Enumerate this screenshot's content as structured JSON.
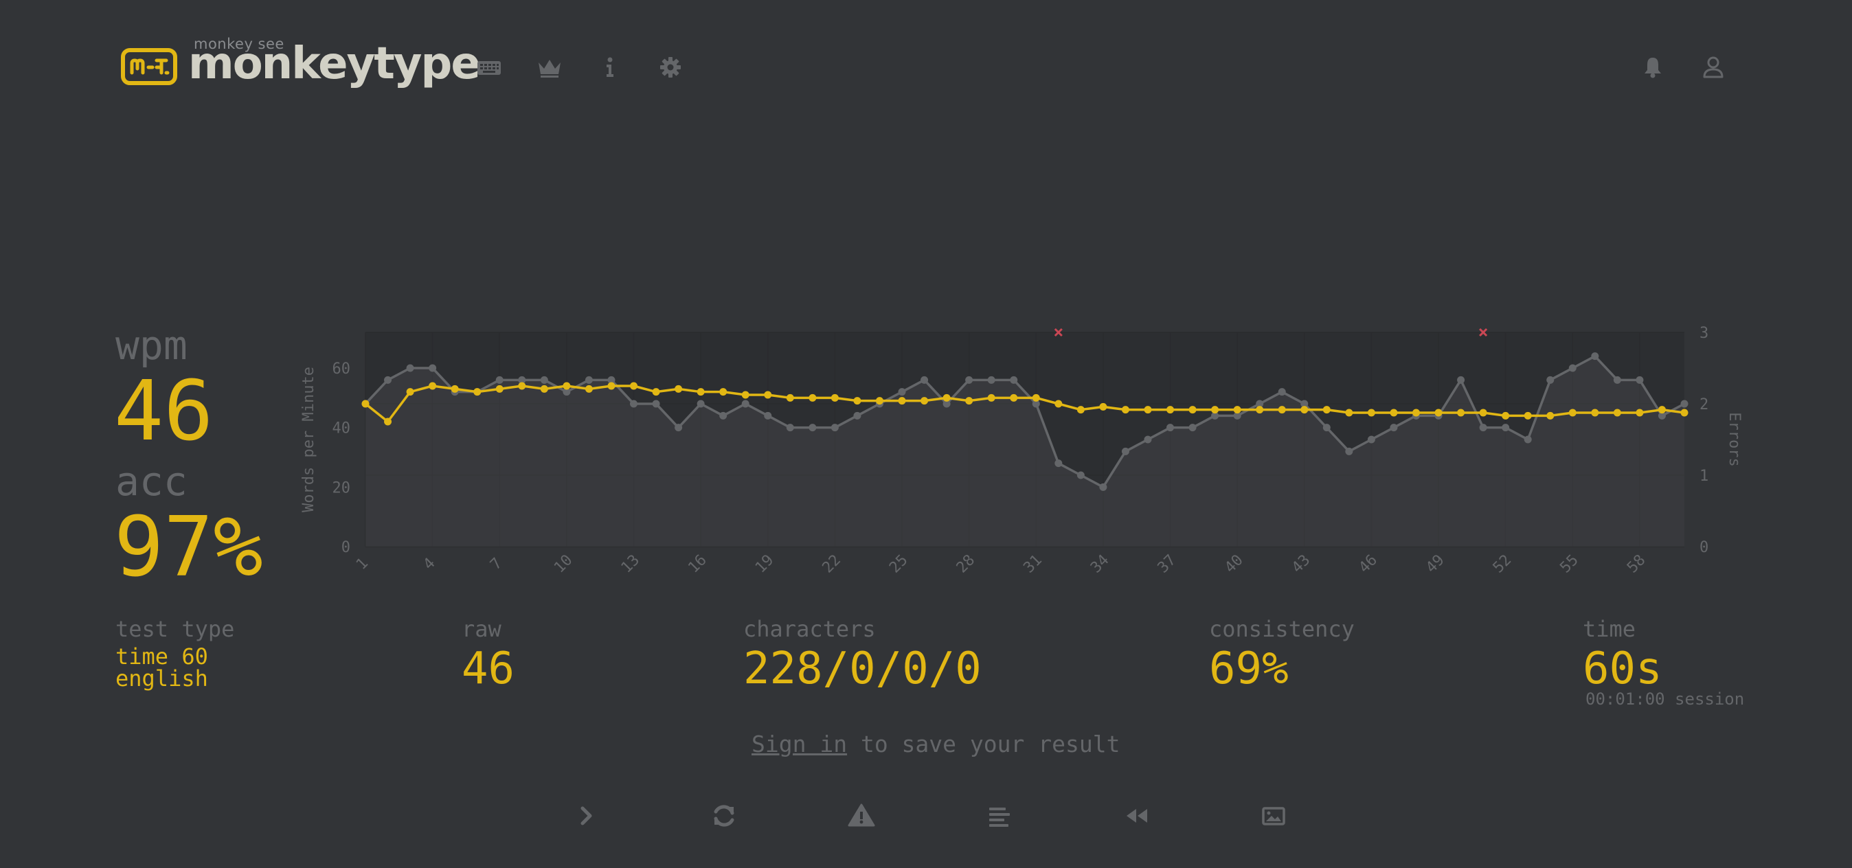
{
  "header": {
    "brand_sub": "monkey see",
    "brand_title": "monkeytype",
    "nav": [
      {
        "icon": "keyboard-icon"
      },
      {
        "icon": "crown-icon"
      },
      {
        "icon": "info-icon"
      },
      {
        "icon": "gear-icon"
      }
    ],
    "right": [
      {
        "icon": "bell-icon"
      },
      {
        "icon": "user-icon"
      }
    ]
  },
  "result": {
    "wpm_label": "wpm",
    "wpm_value": "46",
    "acc_label": "acc",
    "acc_value": "97%"
  },
  "stats": {
    "test_type_label": "test type",
    "test_type_line1": "time 60",
    "test_type_line2": "english",
    "raw_label": "raw",
    "raw_value": "46",
    "characters_label": "characters",
    "characters_value": "228/0/0/0",
    "consistency_label": "consistency",
    "consistency_value": "69%",
    "time_label": "time",
    "time_value": "60s",
    "session": "00:01:00 session"
  },
  "signin": {
    "link": "Sign in",
    "rest": " to save your result"
  },
  "actions": [
    {
      "icon": "next-test-icon"
    },
    {
      "icon": "restart-icon"
    },
    {
      "icon": "report-icon"
    },
    {
      "icon": "words-history-icon"
    },
    {
      "icon": "replay-icon"
    },
    {
      "icon": "screenshot-icon"
    }
  ],
  "colors": {
    "background": "#323437",
    "main": "#e2b714",
    "sub": "#646669",
    "text": "#d1d0c5",
    "error": "#ca4754"
  },
  "chart_data": {
    "type": "line",
    "ylabel": "Words per Minute",
    "y2label": "Errors",
    "ylim": [
      0,
      72
    ],
    "y2lim": [
      0,
      3
    ],
    "yticks": [
      "0",
      "20",
      "40",
      "60"
    ],
    "y2ticks": [
      "0",
      "1",
      "2",
      "3"
    ],
    "xticks": [
      "1",
      "4",
      "7",
      "10",
      "13",
      "16",
      "19",
      "22",
      "25",
      "28",
      "31",
      "34",
      "37",
      "40",
      "43",
      "46",
      "49",
      "52",
      "55",
      "58"
    ],
    "x": [
      1,
      2,
      3,
      4,
      5,
      6,
      7,
      8,
      9,
      10,
      11,
      12,
      13,
      14,
      15,
      16,
      17,
      18,
      19,
      20,
      21,
      22,
      23,
      24,
      25,
      26,
      27,
      28,
      29,
      30,
      31,
      32,
      33,
      34,
      35,
      36,
      37,
      38,
      39,
      40,
      41,
      42,
      43,
      44,
      45,
      46,
      47,
      48,
      49,
      50,
      51,
      52,
      53,
      54,
      55,
      56,
      57,
      58,
      59,
      60
    ],
    "series": [
      {
        "values": [
          48,
          56,
          60,
          60,
          52,
          52,
          56,
          56,
          56,
          52,
          56,
          56,
          48,
          48,
          40,
          48,
          44,
          48,
          44,
          40,
          40,
          40,
          44,
          48,
          52,
          56,
          48,
          56,
          56,
          56,
          48,
          28,
          24,
          20,
          32,
          36,
          40,
          40,
          44,
          44,
          48,
          52,
          48,
          40,
          32,
          36,
          40,
          44,
          44,
          56,
          40,
          40,
          36,
          56,
          60,
          64,
          56,
          56,
          44,
          48
        ],
        "color": "#646669"
      },
      {
        "values": [
          48,
          42,
          52,
          54,
          53,
          52,
          53,
          54,
          53,
          54,
          53,
          54,
          54,
          52,
          53,
          52,
          52,
          51,
          51,
          50,
          50,
          50,
          49,
          49,
          49,
          49,
          50,
          49,
          50,
          50,
          50,
          48,
          46,
          47,
          46,
          46,
          46,
          46,
          46,
          46,
          46,
          46,
          46,
          46,
          45,
          45,
          45,
          45,
          45,
          45,
          45,
          44,
          44,
          44,
          45,
          45,
          45,
          45,
          46,
          45
        ],
        "color": "#e2b714"
      }
    ],
    "errors": [
      {
        "x": 32,
        "count": 3
      },
      {
        "x": 51,
        "count": 3
      }
    ],
    "grid": true
  }
}
